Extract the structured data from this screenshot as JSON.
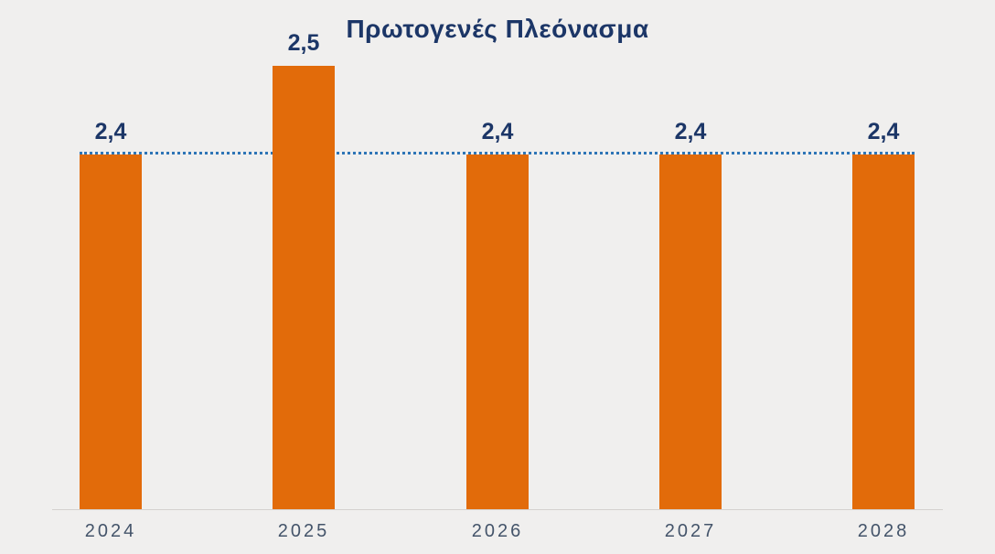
{
  "chart_data": {
    "type": "bar",
    "title": "Πρωτογενές Πλεόνασμα",
    "categories": [
      "2024",
      "2025",
      "2026",
      "2027",
      "2028"
    ],
    "values": [
      2.4,
      2.5,
      2.4,
      2.4,
      2.4
    ],
    "value_labels": [
      "2,4",
      "2,5",
      "2,4",
      "2,4",
      "2,4"
    ],
    "xlabel": "",
    "ylabel": "",
    "ylim": [
      2.0,
      2.5
    ],
    "grid": false,
    "legend": false,
    "reference_line": {
      "value": 2.4,
      "style": "dotted",
      "color": "#2e75b6"
    },
    "bar_color": "#e26b0a",
    "label_color": "#1c3667",
    "tick_color": "#44546a",
    "background_color": "#f0efee"
  }
}
